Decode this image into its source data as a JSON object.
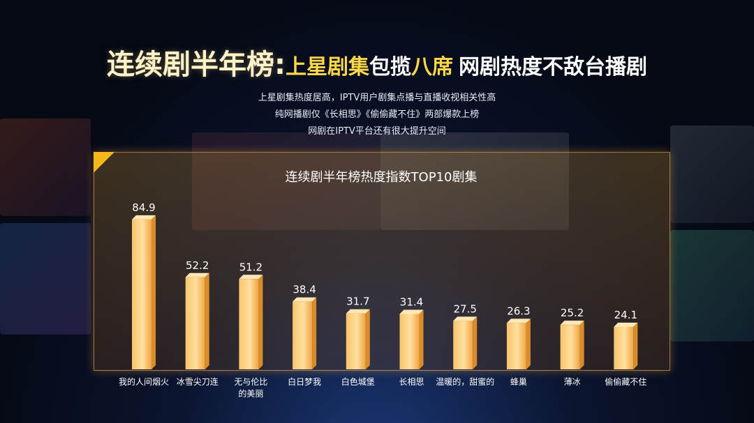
{
  "title": {
    "part1": "连续剧半年榜:",
    "part2": "上星剧集",
    "part3": "包揽",
    "part4": "八席",
    "part5": "网剧热度不敌台播剧"
  },
  "subtitles": [
    "上星剧集热度居高，IPTV用户剧集点播与直播收视相关性高",
    "纯网播剧仅《长相思》《偷偷藏不住》两部爆款上榜",
    "网剧在IPTV平台还有很大提升空间"
  ],
  "colors": {
    "bar": "#f6b24a",
    "accent": "#ffd84a",
    "corner": "#f7b81e"
  },
  "chart_data": {
    "type": "bar",
    "title": "连续剧半年榜热度指数TOP10剧集",
    "categories": [
      [
        "我的人间烟火"
      ],
      [
        "冰雪尖刀连"
      ],
      [
        "无与伦比",
        "的美丽"
      ],
      [
        "白日梦我"
      ],
      [
        "白色城堡"
      ],
      [
        "长相思"
      ],
      [
        "温暖的，甜蜜的"
      ],
      [
        "蜂巢"
      ],
      [
        "薄冰"
      ],
      [
        "偷偷藏不住"
      ]
    ],
    "values": [
      84.9,
      52.2,
      51.2,
      38.4,
      31.7,
      31.4,
      27.5,
      26.3,
      25.2,
      24.1
    ],
    "ylim": [
      0,
      90
    ],
    "grid": false,
    "legend": "none"
  }
}
